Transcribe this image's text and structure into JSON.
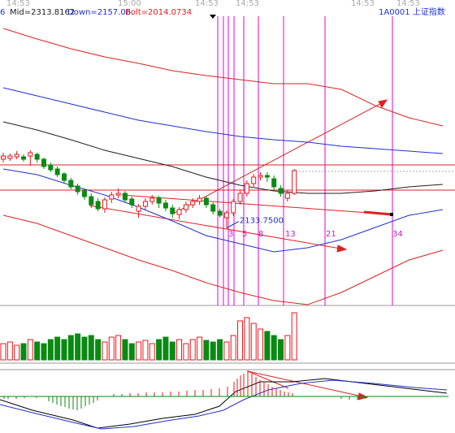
{
  "chart_data": {
    "type": "candlestick",
    "header": {
      "period": "6",
      "mid": "Mid=2313.8162",
      "down": "Down=2157.06.",
      "bolt": "Bolt=2014.0734",
      "symbol": "1A0001  上证指数"
    },
    "time_labels": [
      "14:53",
      "15:00",
      "14:53",
      "14:53",
      "14:53",
      "14:53"
    ],
    "ylim": [
      1945,
      2695
    ],
    "open": [
      2303,
      2305,
      2309,
      2309,
      2311,
      2315,
      2303,
      2289,
      2279,
      2267,
      2251,
      2237,
      2225,
      2211,
      2199,
      2181,
      2205,
      2215,
      2219,
      2205,
      2175,
      2187,
      2199,
      2207,
      2195,
      2183,
      2167,
      2179,
      2191,
      2199,
      2207,
      2191,
      2175,
      2159,
      2171,
      2199,
      2219,
      2243,
      2259,
      2263,
      2255,
      2231,
      2207,
      2219
    ],
    "close": [
      2311,
      2311,
      2315,
      2303,
      2319,
      2303,
      2285,
      2277,
      2265,
      2251,
      2235,
      2223,
      2211,
      2191,
      2181,
      2203,
      2215,
      2219,
      2203,
      2191,
      2187,
      2199,
      2207,
      2195,
      2183,
      2169,
      2179,
      2191,
      2199,
      2207,
      2191,
      2175,
      2165,
      2171,
      2199,
      2219,
      2243,
      2259,
      2263,
      2259,
      2235,
      2219,
      2219,
      2275
    ],
    "high": [
      2319,
      2317,
      2323,
      2315,
      2325,
      2319,
      2307,
      2295,
      2285,
      2271,
      2257,
      2243,
      2231,
      2219,
      2207,
      2209,
      2223,
      2231,
      2225,
      2211,
      2193,
      2207,
      2215,
      2213,
      2203,
      2191,
      2185,
      2199,
      2207,
      2215,
      2213,
      2197,
      2181,
      2177,
      2205,
      2227,
      2251,
      2267,
      2271,
      2271,
      2263,
      2239,
      2227,
      2279
    ],
    "low": [
      2295,
      2299,
      2303,
      2297,
      2287,
      2295,
      2279,
      2271,
      2259,
      2243,
      2229,
      2215,
      2203,
      2183,
      2175,
      2171,
      2195,
      2207,
      2195,
      2183,
      2159,
      2179,
      2191,
      2183,
      2175,
      2159,
      2155,
      2171,
      2183,
      2191,
      2183,
      2167,
      2159,
      2133.75,
      2163,
      2191,
      2211,
      2235,
      2251,
      2247,
      2227,
      2211,
      2199,
      2215
    ],
    "volume": [
      20,
      22,
      18,
      20,
      25,
      22,
      20,
      25,
      28,
      25,
      30,
      32,
      28,
      30,
      25,
      22,
      28,
      30,
      25,
      20,
      22,
      24,
      20,
      25,
      28,
      22,
      25,
      20,
      25,
      28,
      24,
      22,
      25,
      22,
      30,
      48,
      52,
      45,
      38,
      35,
      30,
      25,
      30,
      58
    ],
    "up_color": "#e8141a",
    "down_color": "#0a8a12",
    "bands": [
      {
        "name": "upper2",
        "color": "#e02020",
        "values": [
          2625,
          2599,
          2575,
          2555,
          2539,
          2521,
          2509,
          2499,
          2489,
          2489,
          2475,
          2435,
          2405,
          2385
        ]
      },
      {
        "name": "upper",
        "color": "#2030d0",
        "values": [
          2479,
          2459,
          2439,
          2419,
          2399,
          2385,
          2371,
          2359,
          2351,
          2345,
          2335,
          2329,
          2323,
          2317
        ]
      },
      {
        "name": "mid",
        "color": "#202020",
        "values": [
          2395,
          2375,
          2351,
          2325,
          2305,
          2285,
          2259,
          2239,
          2225,
          2219,
          2219,
          2225,
          2235,
          2241
        ]
      },
      {
        "name": "lower",
        "color": "#2030d0",
        "values": [
          2279,
          2265,
          2239,
          2215,
          2185,
          2151,
          2115,
          2095,
          2075,
          2085,
          2105,
          2135,
          2165,
          2179
        ]
      },
      {
        "name": "lower2",
        "color": "#e02020",
        "values": [
          2165,
          2145,
          2115,
          2085,
          2055,
          2029,
          1999,
          1975,
          1955,
          1945,
          1975,
          2015,
          2055,
          2079
        ]
      }
    ],
    "hlines": [
      2289,
      2227
    ],
    "low_label": "2133.7500",
    "fib_labels": [
      "3",
      "5",
      "8",
      "13",
      "21",
      "34"
    ]
  }
}
